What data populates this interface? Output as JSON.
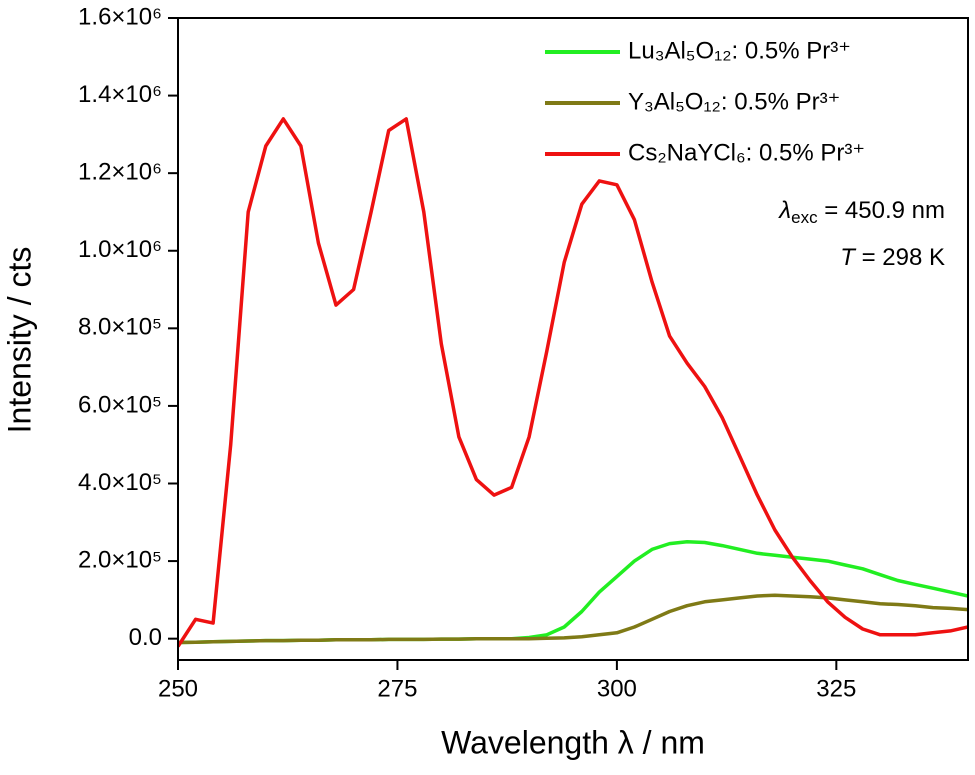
{
  "chart_data": {
    "type": "line",
    "xlabel": "Wavelength λ / nm",
    "ylabel": "Intensity / cts",
    "x": [
      250,
      252,
      254,
      256,
      258,
      260,
      262,
      264,
      266,
      268,
      270,
      272,
      274,
      276,
      278,
      280,
      282,
      284,
      286,
      288,
      290,
      292,
      294,
      296,
      298,
      300,
      302,
      304,
      306,
      308,
      310,
      312,
      314,
      316,
      318,
      320,
      322,
      324,
      326,
      328,
      330,
      332,
      334,
      336,
      338,
      340
    ],
    "series": [
      {
        "name": "Lu₃Al₅O₁₂: 0.5% Pr³⁺",
        "color": "#22ee22",
        "values": [
          -10000,
          -9000,
          -8000,
          -7000,
          -6000,
          -5000,
          -5000,
          -4000,
          -4000,
          -3000,
          -3000,
          -3000,
          -2000,
          -2000,
          -2000,
          -1000,
          -1000,
          0,
          0,
          0,
          3000,
          10000,
          30000,
          70000,
          120000,
          160000,
          200000,
          230000,
          245000,
          250000,
          248000,
          240000,
          230000,
          220000,
          215000,
          210000,
          205000,
          200000,
          190000,
          180000,
          165000,
          150000,
          140000,
          130000,
          120000,
          110000
        ]
      },
      {
        "name": "Y₃Al₅O₁₂: 0.5% Pr³⁺",
        "color": "#7f7a16",
        "values": [
          -10000,
          -9000,
          -8000,
          -7000,
          -6000,
          -5000,
          -5000,
          -4000,
          -4000,
          -3000,
          -3000,
          -3000,
          -2000,
          -2000,
          -2000,
          -1000,
          -1000,
          0,
          0,
          0,
          0,
          1000,
          2000,
          5000,
          10000,
          15000,
          30000,
          50000,
          70000,
          85000,
          95000,
          100000,
          105000,
          110000,
          112000,
          110000,
          108000,
          105000,
          100000,
          95000,
          90000,
          88000,
          85000,
          80000,
          78000,
          75000
        ]
      },
      {
        "name": "Cs₂NaYCl₆: 0.5% Pr³⁺",
        "color": "#ee1111",
        "values": [
          -20000,
          50000,
          40000,
          500000,
          1100000,
          1270000,
          1340000,
          1270000,
          1020000,
          860000,
          900000,
          1100000,
          1310000,
          1340000,
          1100000,
          760000,
          520000,
          410000,
          370000,
          390000,
          520000,
          740000,
          970000,
          1120000,
          1180000,
          1170000,
          1080000,
          920000,
          780000,
          710000,
          650000,
          570000,
          470000,
          370000,
          280000,
          210000,
          150000,
          95000,
          55000,
          25000,
          10000,
          10000,
          10000,
          15000,
          20000,
          30000
        ]
      }
    ],
    "annotations": [
      {
        "parts": [
          "λ",
          "exc",
          " = 450.9 nm"
        ]
      },
      {
        "parts": [
          "T",
          " = 298 K"
        ]
      }
    ],
    "xlim": [
      250,
      340
    ],
    "xticks": [
      250,
      275,
      300,
      325
    ],
    "ylim": [
      -55000,
      1600000
    ],
    "yticks": [
      {
        "value": 0,
        "label": "0.0"
      },
      {
        "value": 200000,
        "label": "2.0×10⁵"
      },
      {
        "value": 400000,
        "label": "4.0×10⁵"
      },
      {
        "value": 600000,
        "label": "6.0×10⁵"
      },
      {
        "value": 800000,
        "label": "8.0×10⁵"
      },
      {
        "value": 1000000,
        "label": "1.0×10⁶"
      },
      {
        "value": 1200000,
        "label": "1.2×10⁶"
      },
      {
        "value": 1400000,
        "label": "1.4×10⁶"
      },
      {
        "value": 1600000,
        "label": "1.6×10⁶"
      }
    ],
    "legend": "upper right"
  }
}
